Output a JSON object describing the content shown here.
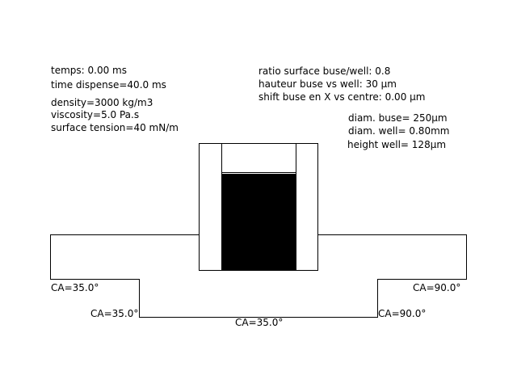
{
  "params_left": {
    "temps": "temps: 0.00 ms",
    "time_dispense": "time dispense=40.0 ms",
    "density": "density=3000 kg/m3",
    "viscosity": "viscosity=5.0 Pa.s",
    "surface_tension": "surface tension=40 mN/m"
  },
  "params_right": {
    "ratio": "ratio surface buse/well: 0.8",
    "hauteur": "hauteur buse vs well: 30 µm",
    "shift": "shift buse en X vs centre: 0.00 µm"
  },
  "dimensions": {
    "diam_buse": "diam. buse= 250µm",
    "diam_well": "diam. well= 0.80mm",
    "height_well": "height well= 128µm"
  },
  "contact_angles": {
    "left_top": "CA=35.0°",
    "left_step": "CA=35.0°",
    "bottom": "CA=35.0°",
    "right_top": "CA=90.0°",
    "right_step": "CA=90.0°"
  },
  "colors": {
    "fluid": "#000000",
    "outline": "#000000",
    "background": "#ffffff"
  }
}
